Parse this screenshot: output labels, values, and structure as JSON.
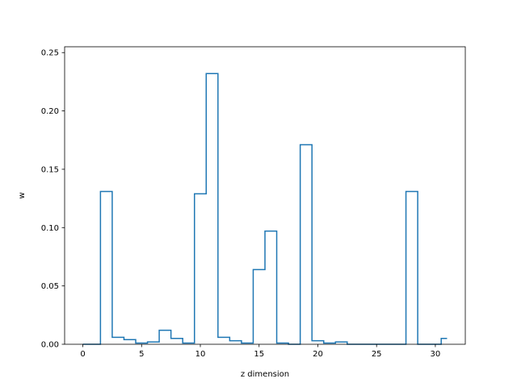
{
  "chart_data": {
    "type": "step",
    "title": "",
    "xlabel": "z dimension",
    "ylabel": "w",
    "xlim": [
      -1.55,
      32.55
    ],
    "ylim": [
      0,
      0.255
    ],
    "xticks": [
      0,
      5,
      10,
      15,
      20,
      25,
      30
    ],
    "yticks": [
      0.0,
      0.05,
      0.1,
      0.15,
      0.2,
      0.25
    ],
    "xtick_labels": [
      "0",
      "5",
      "10",
      "15",
      "20",
      "25",
      "30"
    ],
    "ytick_labels": [
      "0.00",
      "0.05",
      "0.10",
      "0.15",
      "0.20",
      "0.25"
    ],
    "grid": false,
    "legend": "none",
    "color": "#1f77b4",
    "series": [
      {
        "x": [
          0,
          1,
          2,
          3,
          4,
          5,
          6,
          7,
          8,
          9,
          10,
          11,
          12,
          13,
          14,
          15,
          16,
          17,
          18,
          19,
          20,
          21,
          22,
          23,
          24,
          25,
          26,
          27,
          28,
          29,
          30,
          31
        ],
        "values": [
          0.0,
          0.0,
          0.131,
          0.006,
          0.004,
          0.001,
          0.002,
          0.012,
          0.005,
          0.001,
          0.129,
          0.232,
          0.006,
          0.003,
          0.001,
          0.064,
          0.097,
          0.001,
          0.0,
          0.171,
          0.003,
          0.001,
          0.002,
          0.0,
          0.0,
          0.0,
          0.0,
          0.0,
          0.131,
          0.0,
          0.0,
          0.005
        ]
      }
    ]
  }
}
